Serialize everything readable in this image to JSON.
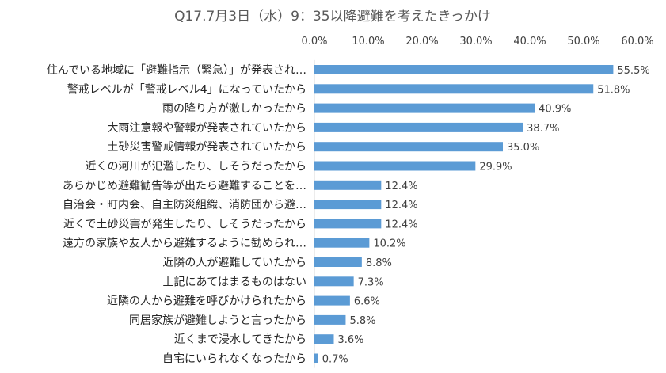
{
  "chart_data": {
    "type": "bar",
    "orientation": "horizontal",
    "title": "Q17.7月3日（水）9：35以降避難を考えたきっかけ",
    "xlabel": "",
    "ylabel": "",
    "xlim": [
      0,
      60
    ],
    "x_ticks": [
      "0.0%",
      "10.0%",
      "20.0%",
      "30.0%",
      "40.0%",
      "50.0%",
      "60.0%"
    ],
    "x_axis_position": "top",
    "grid": false,
    "legend": "none",
    "bar_color": "#5b9bd5",
    "categories": [
      "住んでいる地域に「避難指示（緊急）」が発表され…",
      "警戒レベルが「警戒レベル4」になっていたから",
      "雨の降り方が激しかったから",
      "大雨注意報や警報が発表されていたから",
      "土砂災害警戒情報が発表されていたから",
      "近くの河川が氾濫したり、しそうだったから",
      "あらかじめ避難勧告等が出たら避難することを…",
      "自治会・町内会、自主防災組織、消防団から避…",
      "近くで土砂災害が発生したり、しそうだったから",
      "遠方の家族や友人から避難するように勧められ…",
      "近隣の人が避難していたから",
      "上記にあてはまるものはない",
      "近隣の人から避難を呼びかけられたから",
      "同居家族が避難しようと言ったから",
      "近くまで浸水してきたから",
      "自宅にいられなくなったから"
    ],
    "values": [
      55.5,
      51.8,
      40.9,
      38.7,
      35.0,
      29.9,
      12.4,
      12.4,
      12.4,
      10.2,
      8.8,
      7.3,
      6.6,
      5.8,
      3.6,
      0.7
    ],
    "value_labels": [
      "55.5%",
      "51.8%",
      "40.9%",
      "38.7%",
      "35.0%",
      "29.9%",
      "12.4%",
      "12.4%",
      "12.4%",
      "10.2%",
      "8.8%",
      "7.3%",
      "6.6%",
      "5.8%",
      "3.6%",
      "0.7%"
    ]
  }
}
